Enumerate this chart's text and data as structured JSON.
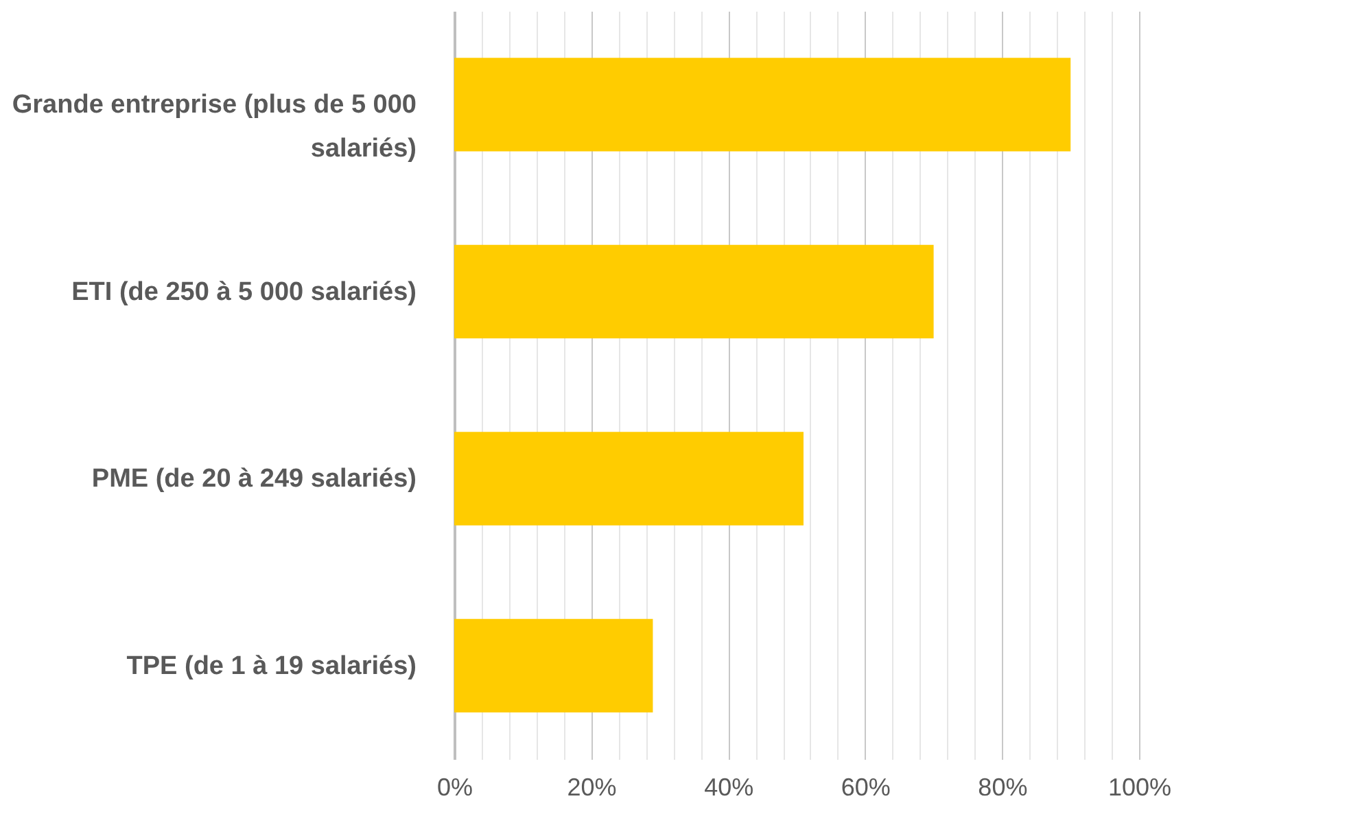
{
  "chart_data": {
    "type": "bar",
    "orientation": "horizontal",
    "categories": [
      "Grande entreprise (plus de 5 000 salariés)",
      "ETI (de 250 à 5 000 salariés)",
      "PME (de 20 à 249 salariés)",
      "TPE (de 1 à 19 salariés)"
    ],
    "values": [
      90,
      70,
      51,
      29
    ],
    "color": "#ffcc00",
    "xlim": [
      0,
      100
    ],
    "xticks": [
      {
        "value": 0,
        "label": "0%"
      },
      {
        "value": 4,
        "label": null
      },
      {
        "value": 8,
        "label": null
      },
      {
        "value": 12,
        "label": null
      },
      {
        "value": 16,
        "label": null
      },
      {
        "value": 20,
        "label": "20%"
      },
      {
        "value": 24,
        "label": null
      },
      {
        "value": 28,
        "label": null
      },
      {
        "value": 32,
        "label": null
      },
      {
        "value": 36,
        "label": null
      },
      {
        "value": 40,
        "label": "40%"
      },
      {
        "value": 44,
        "label": null
      },
      {
        "value": 48,
        "label": null
      },
      {
        "value": 52,
        "label": null
      },
      {
        "value": 56,
        "label": null
      },
      {
        "value": 60,
        "label": "60%"
      },
      {
        "value": 64,
        "label": null
      },
      {
        "value": 68,
        "label": null
      },
      {
        "value": 72,
        "label": null
      },
      {
        "value": 76,
        "label": null
      },
      {
        "value": 80,
        "label": "80%"
      },
      {
        "value": 84,
        "label": null
      },
      {
        "value": 88,
        "label": null
      },
      {
        "value": 92,
        "label": null
      },
      {
        "value": 96,
        "label": null
      },
      {
        "value": 100,
        "label": "100%"
      }
    ],
    "grid": "x"
  }
}
